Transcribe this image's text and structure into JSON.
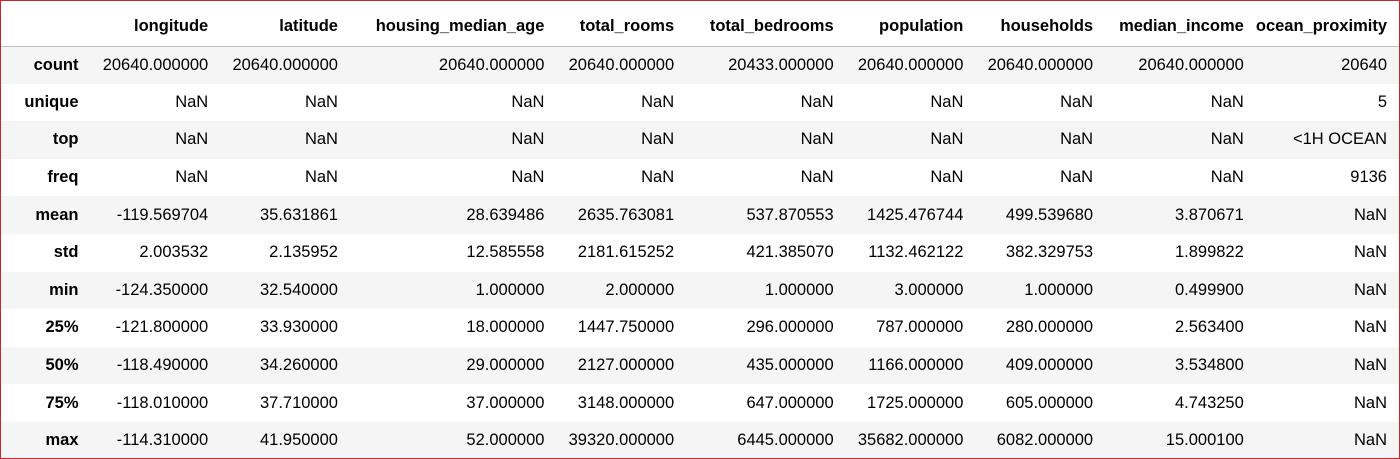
{
  "table": {
    "columns": [
      "longitude",
      "latitude",
      "housing_median_age",
      "total_rooms",
      "total_bedrooms",
      "population",
      "households",
      "median_income",
      "ocean_proximity"
    ],
    "rows": [
      {
        "label": "count",
        "values": [
          "20640.000000",
          "20640.000000",
          "20640.000000",
          "20640.000000",
          "20433.000000",
          "20640.000000",
          "20640.000000",
          "20640.000000",
          "20640"
        ]
      },
      {
        "label": "unique",
        "values": [
          "NaN",
          "NaN",
          "NaN",
          "NaN",
          "NaN",
          "NaN",
          "NaN",
          "NaN",
          "5"
        ]
      },
      {
        "label": "top",
        "values": [
          "NaN",
          "NaN",
          "NaN",
          "NaN",
          "NaN",
          "NaN",
          "NaN",
          "NaN",
          "<1H OCEAN"
        ]
      },
      {
        "label": "freq",
        "values": [
          "NaN",
          "NaN",
          "NaN",
          "NaN",
          "NaN",
          "NaN",
          "NaN",
          "NaN",
          "9136"
        ]
      },
      {
        "label": "mean",
        "values": [
          "-119.569704",
          "35.631861",
          "28.639486",
          "2635.763081",
          "537.870553",
          "1425.476744",
          "499.539680",
          "3.870671",
          "NaN"
        ]
      },
      {
        "label": "std",
        "values": [
          "2.003532",
          "2.135952",
          "12.585558",
          "2181.615252",
          "421.385070",
          "1132.462122",
          "382.329753",
          "1.899822",
          "NaN"
        ]
      },
      {
        "label": "min",
        "values": [
          "-124.350000",
          "32.540000",
          "1.000000",
          "2.000000",
          "1.000000",
          "3.000000",
          "1.000000",
          "0.499900",
          "NaN"
        ]
      },
      {
        "label": "25%",
        "values": [
          "-121.800000",
          "33.930000",
          "18.000000",
          "1447.750000",
          "296.000000",
          "787.000000",
          "280.000000",
          "2.563400",
          "NaN"
        ]
      },
      {
        "label": "50%",
        "values": [
          "-118.490000",
          "34.260000",
          "29.000000",
          "2127.000000",
          "435.000000",
          "1166.000000",
          "409.000000",
          "3.534800",
          "NaN"
        ]
      },
      {
        "label": "75%",
        "values": [
          "-118.010000",
          "37.710000",
          "37.000000",
          "3148.000000",
          "647.000000",
          "1725.000000",
          "605.000000",
          "4.743250",
          "NaN"
        ]
      },
      {
        "label": "max",
        "values": [
          "-114.310000",
          "41.950000",
          "52.000000",
          "39320.000000",
          "6445.000000",
          "35682.000000",
          "6082.000000",
          "15.000100",
          "NaN"
        ]
      }
    ]
  },
  "colors": {
    "frame_border": "#c8282c",
    "stripe": "#f5f5f5",
    "header_rule": "#bdbdbd"
  }
}
